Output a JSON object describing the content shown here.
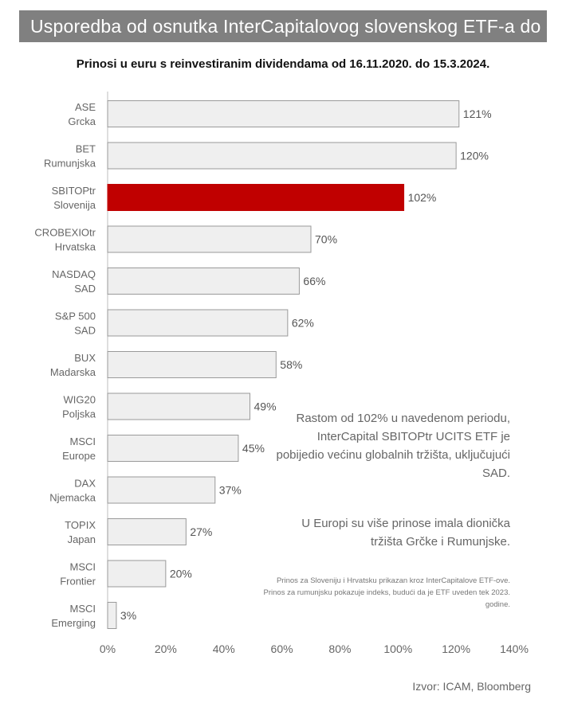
{
  "header": {
    "title": "Usporedba od osnutka InterCapitalovog slovenskog ETF-a do danas",
    "subtitle": "Prinosi u euru s reinvestiranim dividendama od 16.11.2020. do 15.3.2024."
  },
  "notes": {
    "main": "Rastom od 102% u navedenom periodu, InterCapital SBITOPtr UCITS ETF je pobijedio većinu globalnih tržišta, uključujući SAD.",
    "europe": "U Europi su više prinose imala dionička tržišta Grčke i Rumunjske.",
    "footnote": "Prinos za Sloveniju i Hrvatsku prikazan kroz InterCapitalove ETF-ove. Prinos za rumunjsku pokazuje indeks, budući da je ETF uveden tek 2023. godine."
  },
  "source": "Izvor: ICAM, Bloomberg",
  "colors": {
    "bar": "#efefef",
    "bar_stroke": "#9a9a9a",
    "highlight": "#c00000",
    "banner": "#808080"
  },
  "chart_data": {
    "type": "bar",
    "orientation": "horizontal",
    "categories": [
      [
        "ASE",
        "Grcka"
      ],
      [
        "BET",
        "Rumunjska"
      ],
      [
        "SBITOPtr",
        "Slovenija"
      ],
      [
        "CROBEXIOtr",
        "Hrvatska"
      ],
      [
        "NASDAQ",
        "SAD"
      ],
      [
        "S&P 500",
        "SAD"
      ],
      [
        "BUX",
        "Madarska"
      ],
      [
        "WIG20",
        "Poljska"
      ],
      [
        "MSCI",
        "Europe"
      ],
      [
        "DAX",
        "Njemacka"
      ],
      [
        "TOPIX",
        "Japan"
      ],
      [
        "MSCI",
        "Frontier"
      ],
      [
        "MSCI",
        "Emerging"
      ]
    ],
    "values": [
      121,
      120,
      102,
      70,
      66,
      62,
      58,
      49,
      45,
      37,
      27,
      20,
      3
    ],
    "value_labels": [
      "121%",
      "120%",
      "102%",
      "70%",
      "66%",
      "62%",
      "58%",
      "49%",
      "45%",
      "37%",
      "27%",
      "20%",
      "3%"
    ],
    "highlight_index": 2,
    "xlim": [
      0,
      140
    ],
    "xticks": [
      0,
      20,
      40,
      60,
      80,
      100,
      120,
      140
    ],
    "xtick_labels": [
      "0%",
      "20%",
      "40%",
      "60%",
      "80%",
      "100%",
      "120%",
      "140%"
    ],
    "grid": false
  }
}
